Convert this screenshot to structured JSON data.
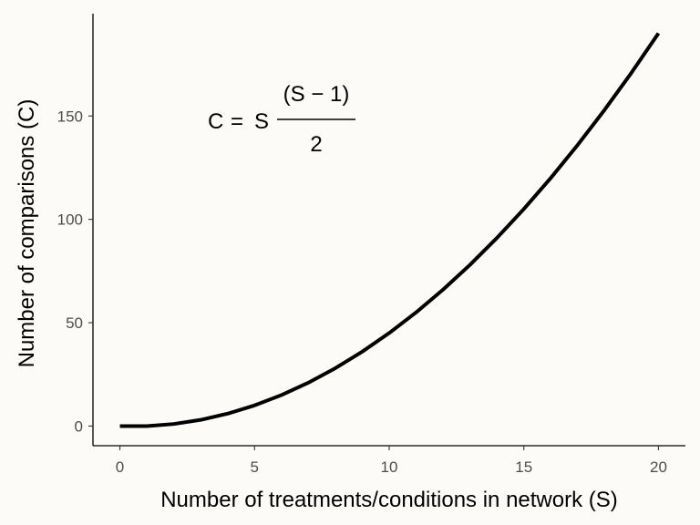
{
  "chart_data": {
    "type": "line",
    "title": "",
    "xlabel": "Number of treatments/conditions in network (S)",
    "ylabel": "Number of comparisons (C)",
    "xlim": [
      -1,
      21
    ],
    "ylim": [
      -9.5,
      199.5
    ],
    "xticks": [
      "0",
      "5",
      "10",
      "15",
      "20"
    ],
    "yticks": [
      "0",
      "50",
      "100",
      "150"
    ],
    "grid": false,
    "series": [
      {
        "color": "#000000",
        "x": [
          0,
          1,
          2,
          3,
          4,
          5,
          6,
          7,
          8,
          9,
          10,
          11,
          12,
          13,
          14,
          15,
          16,
          17,
          18,
          19,
          20
        ],
        "y": [
          0,
          0,
          1,
          3,
          6,
          10,
          15,
          21,
          28,
          36,
          45,
          55,
          66,
          78,
          91,
          105,
          120,
          136,
          153,
          171,
          190
        ]
      }
    ],
    "annotation": {
      "lhs": "C",
      "eq": "=",
      "s": "S",
      "numerator": "(S − 1)",
      "denominator": "2"
    }
  }
}
